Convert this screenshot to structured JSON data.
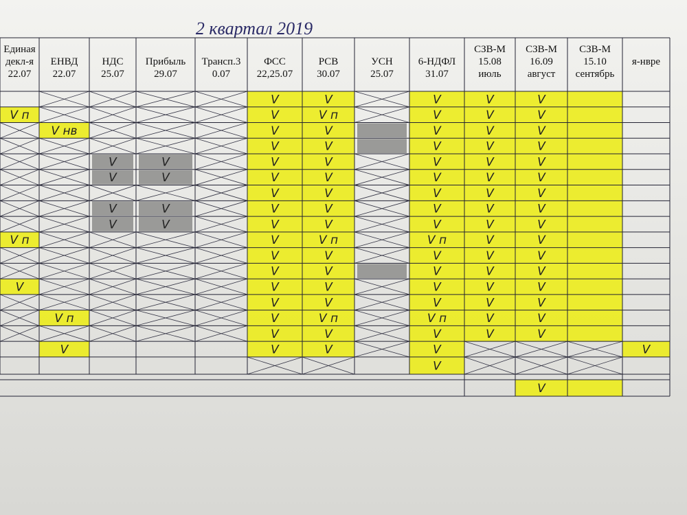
{
  "header": {
    "title": "2 квартал 2019",
    "columns": [
      [
        "Единая",
        "декл-я",
        "22.07"
      ],
      [
        "ЕНВД",
        "22.07"
      ],
      [
        "НДС",
        "25.07"
      ],
      [
        "Прибыль",
        "29.07"
      ],
      [
        "Трансп.3",
        "0.07"
      ],
      [
        "ФСС",
        "22,25.07"
      ],
      [
        "РСВ",
        "30.07"
      ],
      [
        "УСН",
        "25.07"
      ],
      [
        "6-НДФЛ",
        "31.07"
      ],
      [
        "СЗВ-М",
        "15.08",
        "июль"
      ],
      [
        "СЗВ-М",
        "16.09",
        "август"
      ],
      [
        "СЗВ-М",
        "15.10",
        "сентябрь"
      ],
      [
        "я-нвре"
      ]
    ]
  },
  "table": {
    "rows": [
      [
        null,
        null,
        null,
        null,
        null,
        "V",
        "V",
        null,
        "V",
        "V",
        "V",
        null,
        null
      ],
      [
        "V п",
        null,
        null,
        null,
        null,
        "V",
        "V п",
        null,
        "V",
        "V",
        "V",
        null,
        null
      ],
      [
        null,
        "V нв",
        null,
        null,
        null,
        "V",
        "V",
        null,
        "V",
        "V",
        "V",
        null,
        null
      ],
      [
        null,
        null,
        null,
        null,
        null,
        "V",
        "V",
        null,
        "V",
        "V",
        "V",
        null,
        null
      ],
      [
        null,
        null,
        "V",
        "V",
        null,
        "V",
        "V",
        null,
        "V",
        "V",
        "V",
        null,
        null
      ],
      [
        null,
        null,
        "V",
        "V",
        null,
        "V",
        "V",
        null,
        "V",
        "V",
        "V",
        null,
        null
      ],
      [
        null,
        null,
        null,
        null,
        null,
        "V",
        "V",
        null,
        "V",
        "V",
        "V",
        null,
        null
      ],
      [
        null,
        null,
        "V",
        "V",
        null,
        "V",
        "V",
        null,
        "V",
        "V",
        "V",
        null,
        null
      ],
      [
        null,
        null,
        "V",
        "V",
        null,
        "V",
        "V",
        null,
        "V",
        "V",
        "V",
        null,
        null
      ],
      [
        "V п",
        null,
        null,
        null,
        null,
        "V",
        "V п",
        null,
        "V п",
        "V",
        "V",
        null,
        null
      ],
      [
        null,
        null,
        null,
        null,
        null,
        "V",
        "V",
        null,
        "V",
        "V",
        "V",
        null,
        null
      ],
      [
        null,
        null,
        null,
        null,
        null,
        "V",
        "V",
        null,
        "V",
        "V",
        "V",
        null,
        null
      ],
      [
        "V",
        null,
        null,
        null,
        null,
        "V",
        "V",
        null,
        "V",
        "V",
        "V",
        null,
        null
      ],
      [
        null,
        null,
        null,
        null,
        null,
        "V",
        "V",
        null,
        "V",
        "V",
        "V",
        null,
        null
      ],
      [
        null,
        "V п",
        null,
        null,
        null,
        "V",
        "V п",
        null,
        "V п",
        "V",
        "V",
        null,
        null
      ],
      [
        null,
        null,
        null,
        null,
        null,
        "V",
        "V",
        null,
        "V",
        "V",
        "V",
        null,
        null
      ],
      [
        null,
        "V",
        null,
        null,
        null,
        "V",
        "V",
        null,
        "V",
        null,
        null,
        null,
        "V"
      ],
      [
        null,
        null,
        null,
        null,
        null,
        null,
        null,
        null,
        "V",
        null,
        null,
        null,
        null
      ],
      [
        null,
        null,
        null,
        null,
        null,
        null,
        null,
        null,
        null,
        null,
        "V",
        null,
        null
      ]
    ]
  }
}
